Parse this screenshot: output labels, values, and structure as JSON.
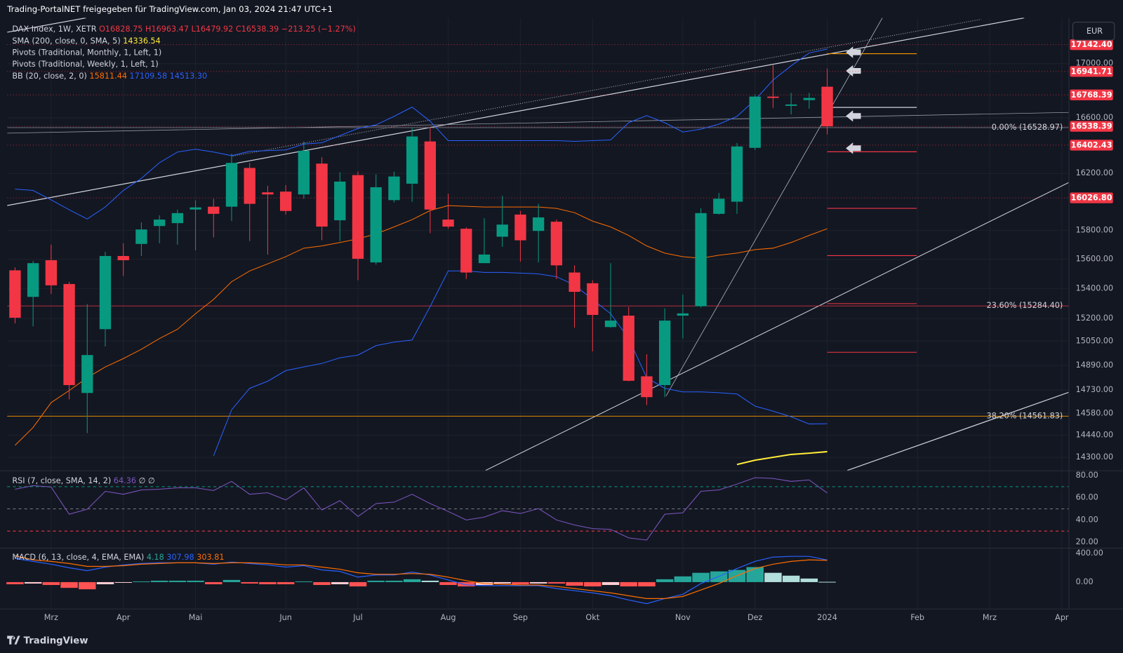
{
  "header": "Trading-PortalNET freigegeben für TradingView.com, Jan 03, 2024 21:47 UTC+1",
  "currency": "EUR",
  "brand": "TradingView",
  "x_axis": {
    "categories": [
      null,
      null,
      "Mrz",
      null,
      null,
      null,
      "Apr",
      null,
      null,
      null,
      "Mai",
      null,
      null,
      null,
      null,
      "Jun",
      null,
      null,
      null,
      "Jul",
      null,
      null,
      null,
      null,
      "Aug",
      null,
      null,
      null,
      "Sep",
      null,
      null,
      null,
      "Okt",
      null,
      null,
      null,
      null,
      "Nov",
      null,
      null,
      null,
      "Dez",
      null,
      null,
      null,
      "2024",
      null,
      null,
      null,
      null,
      "Feb",
      null,
      null,
      null,
      "Mrz",
      null,
      null,
      null,
      "Apr"
    ]
  },
  "chart_data": [
    {
      "type": "candlestick",
      "legend": [
        "DAX Index, 1W, XETR",
        "O16828.75",
        "H16963.47",
        "L16479.92",
        "C16538.39",
        "−213.25 (−1.27%)",
        "SMA (200, close, 0, SMA, 5)",
        "14336.54",
        "Pivots (Traditional, Monthly, 1, Left, 1)",
        "Pivots (Traditional, Weekly, 1, Left, 1)",
        "BB (20, close, 2, 0)",
        "15811.44",
        "17109.58",
        "14513.30"
      ],
      "log_scale": true,
      "ylim": [
        14219,
        17345
      ],
      "yticks": [
        {
          "value": 17000,
          "label": "17000.00"
        },
        {
          "value": 16600,
          "label": "16600.00"
        },
        {
          "value": 16200,
          "label": "16200.00"
        },
        {
          "value": 15800,
          "label": "15800.00"
        },
        {
          "value": 15600,
          "label": "15600.00"
        },
        {
          "value": 15400,
          "label": "15400.00"
        },
        {
          "value": 15200,
          "label": "15200.00"
        },
        {
          "value": 15050,
          "label": "15050.00"
        },
        {
          "value": 14890,
          "label": "14890.00"
        },
        {
          "value": 14730,
          "label": "14730.00"
        },
        {
          "value": 14580,
          "label": "14580.00"
        },
        {
          "value": 14440,
          "label": "14440.00"
        },
        {
          "value": 14300,
          "label": "14300.00"
        }
      ],
      "grid": true,
      "up_color": "#089981",
      "down_color": "#f23645",
      "open": [
        15525,
        15345,
        15594,
        15432,
        14711,
        15129,
        15623,
        15706,
        15830,
        15850,
        15945,
        15965,
        15965,
        16239,
        16066,
        16071,
        16051,
        16270,
        15870,
        16188,
        15579,
        16011,
        16127,
        16429,
        15875,
        15811,
        15574,
        15756,
        15910,
        15796,
        15860,
        15510,
        15437,
        15143,
        15219,
        14819,
        14762,
        15219,
        15282,
        15915,
        16000,
        16383,
        16756,
        16688,
        16730,
        16828.75
      ],
      "high": [
        15545,
        15589,
        15701,
        15447,
        15297,
        15652,
        15711,
        15855,
        15905,
        15945,
        16010,
        16021,
        16341,
        16275,
        16112,
        16117,
        16429,
        16316,
        16208,
        16213,
        16193,
        16213,
        16531,
        16531,
        16056,
        15821,
        15885,
        16041,
        15935,
        15985,
        15875,
        15559,
        15457,
        15574,
        15277,
        14963,
        15268,
        15360,
        15955,
        16061,
        16418,
        16772,
        16989,
        16783,
        16783,
        16963.47
      ],
      "low": [
        15167,
        15148,
        15365,
        14670,
        14454,
        15015,
        15486,
        15623,
        15711,
        15701,
        15662,
        15751,
        15865,
        15726,
        15633,
        15910,
        16021,
        15731,
        15726,
        15457,
        15564,
        15995,
        16000,
        15780,
        15811,
        15466,
        15574,
        15686,
        15584,
        15579,
        15466,
        15139,
        14982,
        15139,
        14786,
        14633,
        14684,
        15067,
        15273,
        15910,
        15915,
        16367,
        16673,
        16625,
        16667,
        16479.92
      ],
      "close": [
        15205,
        15574,
        15423,
        14762,
        14958,
        15623,
        15594,
        15806,
        15875,
        15920,
        15960,
        15915,
        16275,
        15985,
        16051,
        15935,
        16362,
        15826,
        16142,
        15604,
        16102,
        16178,
        16465,
        15945,
        15826,
        15510,
        15633,
        15840,
        15731,
        15890,
        15559,
        15379,
        15224,
        15186,
        14790,
        14684,
        15186,
        15234,
        15920,
        16021,
        16393,
        16756,
        16746,
        16698,
        16746,
        16538.39
      ],
      "series": [
        {
          "color": "#2962ff",
          "values": [
            16089,
            16079,
            16013,
            15943,
            15879,
            15963,
            16079,
            16165,
            16276,
            16353,
            16373,
            16353,
            16327,
            16358,
            16363,
            16368,
            16410,
            16420,
            16471,
            16523,
            16549,
            16611,
            16679,
            16575,
            16435,
            16435,
            16435,
            16435,
            16435,
            16435,
            16435,
            16430,
            16435,
            16440,
            16565,
            16617,
            16565,
            16497,
            16518,
            16554,
            16611,
            16731,
            16878,
            16984,
            17080,
            17109.58
          ]
        },
        {
          "color": "#2962ff",
          "values": [
            null,
            null,
            null,
            null,
            null,
            null,
            null,
            null,
            null,
            null,
            null,
            14310,
            14603,
            14741,
            14787,
            14856,
            14880,
            14903,
            14940,
            14958,
            15020,
            15043,
            15057,
            15280,
            15521,
            15521,
            15511,
            15511,
            15506,
            15501,
            15482,
            15424,
            15328,
            15232,
            15067,
            14810,
            14741,
            14718,
            14718,
            14713,
            14704,
            14626,
            14594,
            14558,
            14512,
            14513.3
          ]
        },
        {
          "color": "#ff6d00",
          "values": [
            14377,
            14490,
            14649,
            14727,
            14810,
            14880,
            14935,
            14996,
            15067,
            15128,
            15232,
            15328,
            15448,
            15521,
            15569,
            15618,
            15677,
            15692,
            15716,
            15741,
            15775,
            15824,
            15874,
            15938,
            15973,
            15968,
            15963,
            15963,
            15963,
            15963,
            15953,
            15923,
            15864,
            15824,
            15765,
            15692,
            15643,
            15618,
            15608,
            15628,
            15643,
            15667,
            15677,
            15716,
            15765,
            15811.44
          ]
        },
        {
          "color": "#ffeb3b",
          "values": [
            null,
            null,
            null,
            null,
            null,
            null,
            null,
            null,
            null,
            null,
            null,
            null,
            null,
            null,
            null,
            null,
            null,
            null,
            null,
            null,
            null,
            null,
            null,
            null,
            null,
            null,
            null,
            null,
            null,
            null,
            null,
            null,
            null,
            null,
            null,
            null,
            null,
            null,
            null,
            null,
            14256,
            14283,
            14301,
            14319,
            14327,
            14336.54
          ]
        }
      ],
      "fib_levels": [
        {
          "value": 16528.97,
          "label": "0.00% (16528.97)",
          "color": "#787b86"
        },
        {
          "value": 15284.4,
          "label": "23.60% (15284.40)",
          "color": "#f23645"
        },
        {
          "value": 14561.83,
          "label": "38.20% (14561.83)",
          "color": "#ff9800"
        }
      ],
      "price_labels": [
        {
          "value": 17142.4,
          "label": "17142.40",
          "color": "#f23645"
        },
        {
          "value": 16941.71,
          "label": "16941.71",
          "color": "#f23645"
        },
        {
          "value": 16768.39,
          "label": "16768.39",
          "color": "#f23645"
        },
        {
          "value": 16538.39,
          "label": "16538.39",
          "color": "#f23645"
        },
        {
          "value": 16402.43,
          "label": "16402.43",
          "color": "#f23645"
        },
        {
          "value": 16026.8,
          "label": "16026.80",
          "color": "#f23645"
        }
      ]
    },
    {
      "type": "line",
      "legend": [
        "RSI (7, close, SMA, 14, 2)",
        "64.36",
        "∅ ∅"
      ],
      "ylim": [
        15,
        84
      ],
      "yticks": [
        {
          "value": 80,
          "label": "80.00"
        },
        {
          "value": 60,
          "label": "60.00"
        },
        {
          "value": 40,
          "label": "40.00"
        },
        {
          "value": 20,
          "label": "20.00"
        }
      ],
      "bands": [
        {
          "value": 70,
          "color": "#089981"
        },
        {
          "value": 50,
          "color": "#787b86"
        },
        {
          "value": 30,
          "color": "#f23645"
        }
      ],
      "series": [
        {
          "color": "#7e57c2",
          "values": [
            67.7,
            71.0,
            69.7,
            45.2,
            49.7,
            65.8,
            63.2,
            67.1,
            67.7,
            69.0,
            69.0,
            66.5,
            74.8,
            63.2,
            64.5,
            58.1,
            69.0,
            49.0,
            57.4,
            43.2,
            54.8,
            56.1,
            63.2,
            54.8,
            47.7,
            40.0,
            42.6,
            48.4,
            45.8,
            50.3,
            40.0,
            35.5,
            32.3,
            31.6,
            23.9,
            21.9,
            45.2,
            46.5,
            65.8,
            67.1,
            72.3,
            78.1,
            77.4,
            74.8,
            76.1,
            64.36
          ]
        }
      ]
    },
    {
      "type": "macd",
      "legend": [
        "MACD (6, 13, close, 4, EMA, EMA)",
        "4.18",
        "307.98",
        "303.81"
      ],
      "ylim": [
        -370,
        460
      ],
      "yticks": [
        {
          "value": 400,
          "label": "400.00"
        },
        {
          "value": 0,
          "label": "0.00"
        }
      ],
      "histogram": {
        "colors": [
          "#26a69a",
          "#b2dfdb",
          "#ff5252",
          "#ffcdd2"
        ],
        "values": [
          -30,
          -20,
          -40,
          -80,
          -100,
          -30,
          -10,
          10,
          20,
          20,
          20,
          -30,
          30,
          -20,
          -30,
          -30,
          10,
          -40,
          -30,
          -60,
          20,
          20,
          40,
          20,
          -40,
          -60,
          -40,
          -20,
          -30,
          -20,
          -20,
          -50,
          -60,
          -40,
          -60,
          -60,
          40,
          80,
          130,
          150,
          170,
          210,
          130,
          90,
          50,
          4.18
        ]
      },
      "series": [
        {
          "color": "#2962ff",
          "values": [
            330,
            290,
            250,
            200,
            160,
            210,
            240,
            260,
            270,
            270,
            270,
            250,
            280,
            260,
            240,
            210,
            230,
            170,
            150,
            70,
            100,
            100,
            140,
            100,
            30,
            -40,
            -50,
            -50,
            -50,
            -50,
            -90,
            -120,
            -150,
            -190,
            -250,
            -300,
            -230,
            -170,
            -20,
            80,
            190,
            290,
            350,
            360,
            360,
            307.98
          ]
        },
        {
          "color": "#ff6d00",
          "values": [
            370,
            310,
            290,
            260,
            220,
            220,
            230,
            250,
            260,
            270,
            270,
            260,
            270,
            270,
            260,
            240,
            240,
            210,
            180,
            130,
            110,
            110,
            120,
            110,
            70,
            20,
            -20,
            -30,
            -40,
            -40,
            -60,
            -90,
            -120,
            -150,
            -190,
            -230,
            -230,
            -200,
            -110,
            -20,
            90,
            190,
            250,
            290,
            310,
            303.81
          ]
        }
      ]
    }
  ]
}
